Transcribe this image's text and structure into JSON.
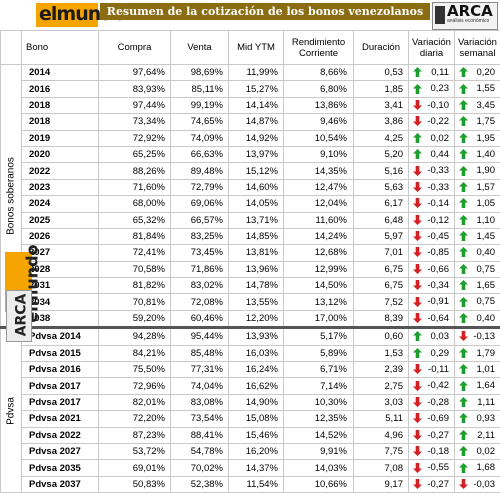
{
  "title": "Resumen de la cotización de los bonos venezolanos",
  "logo_text": "elmundo",
  "arca": {
    "name": "ARCA",
    "subtitle": "análisis económico"
  },
  "headers": [
    "Bono",
    "Compra",
    "Venta",
    "Mid YTM",
    "Rendimiento Corriente",
    "Duración",
    "Variación diaria",
    "Variación semanal"
  ],
  "section_soberanos": "Bonos soberanos",
  "section_pdvsa": "Pdvsa",
  "colors": {
    "up": "#1e9e2e",
    "down": "#d42020",
    "header_bg": "#8a6d12",
    "logo_bg": "#f5a400"
  },
  "rows_soberanos": [
    {
      "bono": "2014",
      "compra": "97,64%",
      "venta": "98,69%",
      "ytm": "11,99%",
      "rc": "8,66%",
      "dur": "0,53",
      "dd": "up",
      "dv": "0,11",
      "wd": "up",
      "wv": "0,20"
    },
    {
      "bono": "2016",
      "compra": "83,93%",
      "venta": "85,11%",
      "ytm": "15,27%",
      "rc": "6,80%",
      "dur": "1,85",
      "dd": "up",
      "dv": "0,23",
      "wd": "up",
      "wv": "1,55"
    },
    {
      "bono": "2018",
      "compra": "97,44%",
      "venta": "99,19%",
      "ytm": "14,14%",
      "rc": "13,86%",
      "dur": "3,41",
      "dd": "down",
      "dv": "-0,10",
      "wd": "up",
      "wv": "3,45"
    },
    {
      "bono": "2018",
      "compra": "73,34%",
      "venta": "74,65%",
      "ytm": "14,87%",
      "rc": "9,46%",
      "dur": "3,86",
      "dd": "down",
      "dv": "-0,22",
      "wd": "up",
      "wv": "1,75"
    },
    {
      "bono": "2019",
      "compra": "72,92%",
      "venta": "74,09%",
      "ytm": "14,92%",
      "rc": "10,54%",
      "dur": "4,25",
      "dd": "up",
      "dv": "0,02",
      "wd": "up",
      "wv": "1,95"
    },
    {
      "bono": "2020",
      "compra": "65,25%",
      "venta": "66,63%",
      "ytm": "13,97%",
      "rc": "9,10%",
      "dur": "5,20",
      "dd": "up",
      "dv": "0,44",
      "wd": "up",
      "wv": "1,40"
    },
    {
      "bono": "2022",
      "compra": "88,26%",
      "venta": "89,48%",
      "ytm": "15,12%",
      "rc": "14,35%",
      "dur": "5,16",
      "dd": "down",
      "dv": "-0,33",
      "wd": "up",
      "wv": "1,90"
    },
    {
      "bono": "2023",
      "compra": "71,60%",
      "venta": "72,79%",
      "ytm": "14,60%",
      "rc": "12,47%",
      "dur": "5,63",
      "dd": "down",
      "dv": "-0,33",
      "wd": "up",
      "wv": "1,57"
    },
    {
      "bono": "2024",
      "compra": "68,00%",
      "venta": "69,06%",
      "ytm": "14,05%",
      "rc": "12,04%",
      "dur": "6,17",
      "dd": "down",
      "dv": "-0,14",
      "wd": "up",
      "wv": "1,05"
    },
    {
      "bono": "2025",
      "compra": "65,32%",
      "venta": "66,57%",
      "ytm": "13,71%",
      "rc": "11,60%",
      "dur": "6,48",
      "dd": "down",
      "dv": "-0,12",
      "wd": "up",
      "wv": "1,10"
    },
    {
      "bono": "2026",
      "compra": "81,84%",
      "venta": "83,25%",
      "ytm": "14,85%",
      "rc": "14,24%",
      "dur": "5,97",
      "dd": "down",
      "dv": "-0,45",
      "wd": "up",
      "wv": "1,45"
    },
    {
      "bono": "2027",
      "compra": "72,41%",
      "venta": "73,45%",
      "ytm": "13,81%",
      "rc": "12,68%",
      "dur": "7,01",
      "dd": "down",
      "dv": "-0,85",
      "wd": "up",
      "wv": "0,40"
    },
    {
      "bono": "2028",
      "compra": "70,58%",
      "venta": "71,86%",
      "ytm": "13,96%",
      "rc": "12,99%",
      "dur": "6,75",
      "dd": "down",
      "dv": "-0,66",
      "wd": "up",
      "wv": "0,75"
    },
    {
      "bono": "2031",
      "compra": "81,82%",
      "venta": "83,02%",
      "ytm": "14,78%",
      "rc": "14,50%",
      "dur": "6,75",
      "dd": "down",
      "dv": "-0,34",
      "wd": "up",
      "wv": "1,65"
    },
    {
      "bono": "2034",
      "compra": "70,81%",
      "venta": "72,08%",
      "ytm": "13,55%",
      "rc": "13,12%",
      "dur": "7,52",
      "dd": "down",
      "dv": "-0,91",
      "wd": "up",
      "wv": "0,75"
    },
    {
      "bono": "2038",
      "compra": "59,20%",
      "venta": "60,46%",
      "ytm": "12,20%",
      "rc": "17,00%",
      "dur": "8,39",
      "dd": "down",
      "dv": "-0,64",
      "wd": "up",
      "wv": "0,40"
    }
  ],
  "rows_pdvsa": [
    {
      "bono": "Pdvsa 2014",
      "compra": "94,28%",
      "venta": "95,44%",
      "ytm": "13,93%",
      "rc": "5,17%",
      "dur": "0,60",
      "dd": "up",
      "dv": "0,03",
      "wd": "down",
      "wv": "-0,13"
    },
    {
      "bono": "Pdvsa 2015",
      "compra": "84,21%",
      "venta": "85,48%",
      "ytm": "16,03%",
      "rc": "5,89%",
      "dur": "1,53",
      "dd": "up",
      "dv": "0,29",
      "wd": "up",
      "wv": "1,79"
    },
    {
      "bono": "Pdvsa 2016",
      "compra": "75,50%",
      "venta": "77,31%",
      "ytm": "16,24%",
      "rc": "6,71%",
      "dur": "2,39",
      "dd": "down",
      "dv": "-0,11",
      "wd": "up",
      "wv": "1,01"
    },
    {
      "bono": "Pdvsa 2017",
      "compra": "72,96%",
      "venta": "74,04%",
      "ytm": "16,62%",
      "rc": "7,14%",
      "dur": "2,75",
      "dd": "down",
      "dv": "-0,42",
      "wd": "up",
      "wv": "1,64"
    },
    {
      "bono": "Pdvsa 2017",
      "compra": "82,01%",
      "venta": "83,08%",
      "ytm": "14,90%",
      "rc": "10,30%",
      "dur": "3,03",
      "dd": "down",
      "dv": "-0,28",
      "wd": "up",
      "wv": "1,11"
    },
    {
      "bono": "Pdvsa 2021",
      "compra": "72,20%",
      "venta": "73,54%",
      "ytm": "15,08%",
      "rc": "12,35%",
      "dur": "5,11",
      "dd": "down",
      "dv": "-0,69",
      "wd": "up",
      "wv": "0,93"
    },
    {
      "bono": "Pdvsa 2022",
      "compra": "87,23%",
      "venta": "88,41%",
      "ytm": "15,46%",
      "rc": "14,52%",
      "dur": "4,96",
      "dd": "down",
      "dv": "-0,27",
      "wd": "up",
      "wv": "2,11"
    },
    {
      "bono": "Pdvsa 2027",
      "compra": "53,72%",
      "venta": "54,78%",
      "ytm": "16,20%",
      "rc": "9,91%",
      "dur": "7,75",
      "dd": "down",
      "dv": "-0,18",
      "wd": "up",
      "wv": "0,02"
    },
    {
      "bono": "Pdvsa 2035",
      "compra": "69,01%",
      "venta": "70,02%",
      "ytm": "14,37%",
      "rc": "14,03%",
      "dur": "7,08",
      "dd": "down",
      "dv": "-0,55",
      "wd": "up",
      "wv": "1,68"
    },
    {
      "bono": "Pdvsa 2037",
      "compra": "50,83%",
      "venta": "52,38%",
      "ytm": "11,54%",
      "rc": "10,66%",
      "dur": "9,17",
      "dd": "down",
      "dv": "-0,27",
      "wd": "down",
      "wv": "-0,03"
    }
  ]
}
